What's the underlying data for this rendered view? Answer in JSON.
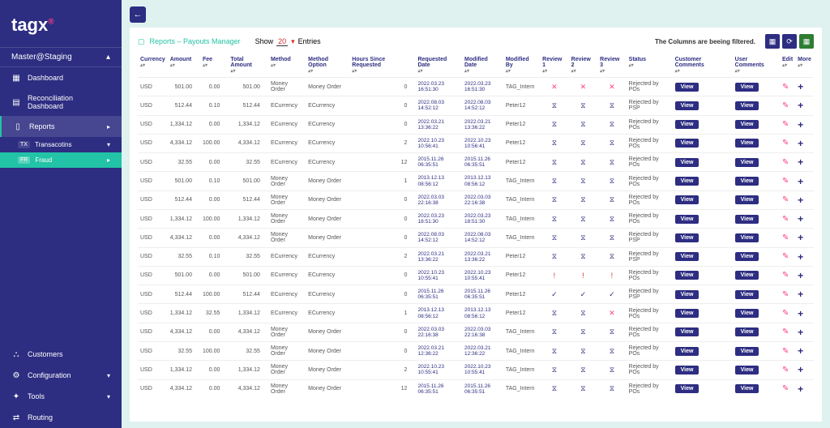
{
  "brand": {
    "name": "tagx",
    "mark": "®"
  },
  "tenant": "Master@Staging",
  "nav": {
    "dashboard": "Dashboard",
    "reconciliation": "Reconciliation Dashboard",
    "reports": "Reports",
    "transactions": {
      "tag": "TX",
      "label": "Transacotins"
    },
    "fraud": {
      "tag": "FR",
      "label": "Fraud"
    },
    "customers": "Customers",
    "configuration": "Configuration",
    "tools": "Tools",
    "routing": "Routing"
  },
  "page": {
    "breadcrumb": "Reports – Payouts Manager",
    "show": "Show",
    "entries_count": "20",
    "entries": "Entries",
    "filter_note": "The Columns are beeing filtered."
  },
  "columns": [
    "Currency",
    "Amount",
    "Fee",
    "Total Amount",
    "Method",
    "Method Option",
    "Hours Since Requested",
    "Requested Date",
    "Modified Date",
    "Modified By",
    "Review 1",
    "Review 2",
    "Review 3",
    "Status",
    "Customer Comments",
    "User Comments",
    "Edit",
    "More"
  ],
  "view_label": "View",
  "colors": {
    "sidebar": "#2d2d82",
    "accent": "#22c3a6",
    "pink": "#ff4081",
    "green": "#2e7d32"
  },
  "rows": [
    {
      "cur": "USD",
      "amt": "501.00",
      "fee": "0.00",
      "tot": "501.00",
      "m": "Money Order",
      "mo": "Money Order",
      "hrs": "0",
      "req": "2022.03.23",
      "reqt": "16:51:30",
      "mod": "2022.03.23",
      "modt": "16:51:30",
      "by": "TAG_Intern",
      "rv": "x",
      "st": "Rejected by POs"
    },
    {
      "cur": "USD",
      "amt": "512.44",
      "fee": "0.10",
      "tot": "512.44",
      "m": "ECurrency",
      "mo": "ECurrency",
      "hrs": "0",
      "req": "2022.08.03",
      "reqt": "14:52:12",
      "mod": "2022.08.03",
      "modt": "14:52:12",
      "by": "Peter12",
      "rv": "wait",
      "st": "Rejected by PSP"
    },
    {
      "cur": "USD",
      "amt": "1,334.12",
      "fee": "0.00",
      "tot": "1,334.12",
      "m": "ECurrency",
      "mo": "ECurrency",
      "hrs": "0",
      "req": "2022.03.21",
      "reqt": "13:36:22",
      "mod": "2022.03.21",
      "modt": "13:36:22",
      "by": "Peter12",
      "rv": "wait",
      "st": "Rejected by POs"
    },
    {
      "cur": "USD",
      "amt": "4,334.12",
      "fee": "100.00",
      "tot": "4,334.12",
      "m": "ECurrency",
      "mo": "ECurrency",
      "hrs": "2",
      "req": "2022.10.23",
      "reqt": "10:56:41",
      "mod": "2022.10.23",
      "modt": "10:56:41",
      "by": "Peter12",
      "rv": "wait",
      "st": "Rejected by POs"
    },
    {
      "cur": "USD",
      "amt": "32.55",
      "fee": "0.00",
      "tot": "32.55",
      "m": "ECurrency",
      "mo": "ECurrency",
      "hrs": "12",
      "req": "2015.11.26",
      "reqt": "06:35:51",
      "mod": "2015.11.26",
      "modt": "06:35:51",
      "by": "Peter12",
      "rv": "wait",
      "st": "Rejected by POs"
    },
    {
      "cur": "USD",
      "amt": "501.00",
      "fee": "0.10",
      "tot": "501.00",
      "m": "Money Order",
      "mo": "Money Order",
      "hrs": "1",
      "req": "2013.12.13",
      "reqt": "08:56:12",
      "mod": "2013.12.13",
      "modt": "08:56:12",
      "by": "TAG_Intern",
      "rv": "wait",
      "st": "Rejected by POs"
    },
    {
      "cur": "USD",
      "amt": "512.44",
      "fee": "0.00",
      "tot": "512.44",
      "m": "Money Order",
      "mo": "Money Order",
      "hrs": "0",
      "req": "2022.03.03",
      "reqt": "22:16:38",
      "mod": "2022.03.03",
      "modt": "22:16:38",
      "by": "TAG_Intern",
      "rv": "wait",
      "st": "Rejected by POs"
    },
    {
      "cur": "USD",
      "amt": "1,334.12",
      "fee": "100.00",
      "tot": "1,334.12",
      "m": "Money Order",
      "mo": "Money Order",
      "hrs": "0",
      "req": "2022.03.23",
      "reqt": "18:51:30",
      "mod": "2022.03.23",
      "modt": "18:51:30",
      "by": "TAG_Intern",
      "rv": "wait",
      "st": "Rejected by POs"
    },
    {
      "cur": "USD",
      "amt": "4,334.12",
      "fee": "0.00",
      "tot": "4,334.12",
      "m": "Money Order",
      "mo": "Money Order",
      "hrs": "0",
      "req": "2022.08.03",
      "reqt": "14:52:12",
      "mod": "2022.08.03",
      "modt": "14:52:12",
      "by": "TAG_Intern",
      "rv": "wait",
      "st": "Rejected by PSP"
    },
    {
      "cur": "USD",
      "amt": "32.55",
      "fee": "0.10",
      "tot": "32.55",
      "m": "ECurrency",
      "mo": "ECurrency",
      "hrs": "2",
      "req": "2022.03.21",
      "reqt": "13:36:22",
      "mod": "2022.03.21",
      "modt": "13:36:22",
      "by": "Peter12",
      "rv": "wait",
      "st": "Rejected by PSP"
    },
    {
      "cur": "USD",
      "amt": "501.00",
      "fee": "0.00",
      "tot": "501.00",
      "m": "ECurrency",
      "mo": "ECurrency",
      "hrs": "0",
      "req": "2022.10.23",
      "reqt": "10:55:41",
      "mod": "2022.10.23",
      "modt": "10:55:41",
      "by": "Peter12",
      "rv": "alert",
      "st": "Rejected by POs"
    },
    {
      "cur": "USD",
      "amt": "512.44",
      "fee": "100.00",
      "tot": "512.44",
      "m": "ECurrency",
      "mo": "ECurrency",
      "hrs": "0",
      "req": "2015.11.26",
      "reqt": "06:35:51",
      "mod": "2015.11.26",
      "modt": "06:35:51",
      "by": "Peter12",
      "rv": "check",
      "st": "Rejected by PSP"
    },
    {
      "cur": "USD",
      "amt": "1,334.12",
      "fee": "32.55",
      "tot": "1,334.12",
      "m": "ECurrency",
      "mo": "ECurrency",
      "hrs": "1",
      "req": "2013.12.13",
      "reqt": "08:56:12",
      "mod": "2013.12.13",
      "modt": "08:56:12",
      "by": "Peter12",
      "rv": "mixed",
      "st": "Rejected by POs"
    },
    {
      "cur": "USD",
      "amt": "4,334.12",
      "fee": "0.00",
      "tot": "4,334.12",
      "m": "Money Order",
      "mo": "Money Order",
      "hrs": "0",
      "req": "2022.03.03",
      "reqt": "22:16:38",
      "mod": "2022.03.03",
      "modt": "22:16:38",
      "by": "TAG_Intern",
      "rv": "wait",
      "st": "Rejected by POs"
    },
    {
      "cur": "USD",
      "amt": "32.55",
      "fee": "100.00",
      "tot": "32.55",
      "m": "Money Order",
      "mo": "Money Order",
      "hrs": "0",
      "req": "2022.03.21",
      "reqt": "12:36:22",
      "mod": "2022.03.21",
      "modt": "12:36:22",
      "by": "TAG_Intern",
      "rv": "wait",
      "st": "Rejected by POs"
    },
    {
      "cur": "USD",
      "amt": "1,334.12",
      "fee": "0.00",
      "tot": "1,334.12",
      "m": "Money Order",
      "mo": "Money Order",
      "hrs": "2",
      "req": "2022.10.23",
      "reqt": "10:55:41",
      "mod": "2022.10.23",
      "modt": "10:55:41",
      "by": "TAG_Intern",
      "rv": "wait",
      "st": "Rejected by POs"
    },
    {
      "cur": "USD",
      "amt": "4,334.12",
      "fee": "0.00",
      "tot": "4,334.12",
      "m": "Money Order",
      "mo": "Money Order",
      "hrs": "12",
      "req": "2015.11.26",
      "reqt": "06:35:51",
      "mod": "2015.11.26",
      "modt": "06:35:51",
      "by": "TAG_Intern",
      "rv": "wait",
      "st": "Rejected by POs"
    }
  ]
}
